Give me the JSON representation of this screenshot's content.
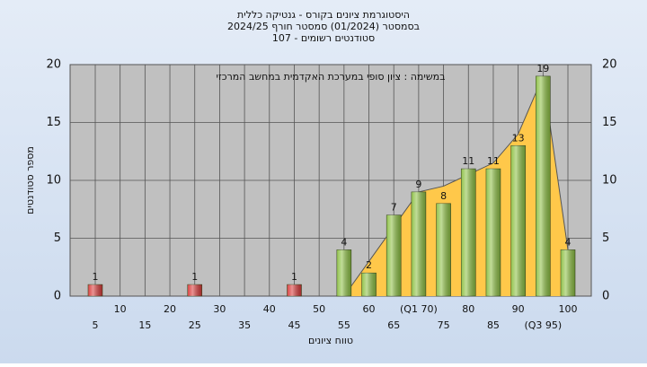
{
  "chart_data": {
    "type": "bar",
    "title": "היסטוגרמת ציונים בקורס - גנטיקה כללית",
    "subtitle": "בסמסטר  (01/2024)  סמסטר חורף 2024/25",
    "subtitle2": "סטודנטים רשומים - 107",
    "annotation": "במשימה : ציון סופי במערכת האקדמית במחשב המרכזי",
    "x_label": "טווח ציונים",
    "y_label": "מספר סטודנטים",
    "categories": [
      "5",
      "10",
      "15",
      "20",
      "25",
      "30",
      "35",
      "40",
      "45",
      "50",
      "55",
      "60",
      "65",
      "(Q1 70)",
      "75",
      "80",
      "85",
      "90",
      "(Q3 95)",
      "100"
    ],
    "values": [
      1,
      0,
      0,
      0,
      1,
      0,
      0,
      0,
      1,
      0,
      4,
      2,
      7,
      9,
      8,
      11,
      11,
      13,
      19,
      4
    ],
    "bar_colors": [
      "#d83a3a",
      "#8dc044",
      "#8dc044",
      "#8dc044",
      "#d83a3a",
      "#8dc044",
      "#8dc044",
      "#8dc044",
      "#d83a3a",
      "#8dc044",
      "#8dc044",
      "#8dc044",
      "#8dc044",
      "#8dc044",
      "#8dc044",
      "#8dc044",
      "#8dc044",
      "#8dc044",
      "#8dc044",
      "#8dc044"
    ],
    "area_values": [
      null,
      null,
      null,
      null,
      null,
      null,
      null,
      null,
      null,
      null,
      0,
      3,
      6,
      9,
      9.5,
      10.5,
      11.5,
      14,
      19,
      4
    ],
    "area_color": "#ffc84a",
    "ylim": [
      0,
      20
    ],
    "yticks": [
      0,
      5,
      10,
      15,
      20
    ],
    "grid": true
  }
}
